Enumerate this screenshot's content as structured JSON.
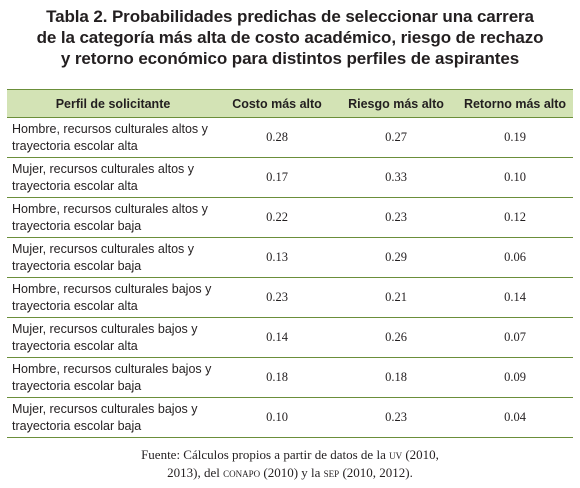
{
  "title": {
    "line1": "Tabla 2. Probabilidades predichas de seleccionar una carrera",
    "line2": "de la categoría más alta de costo académico, riesgo de rechazo",
    "line3": "y retorno económico para distintos perfiles de aspirantes"
  },
  "table": {
    "headers": [
      "Perfil de solicitante",
      "Costo más alto",
      "Riesgo más alto",
      "Retorno más alto"
    ],
    "rows": [
      {
        "profile": "Hombre, recursos culturales altos y\ntrayectoria escolar alta",
        "costo": "0.28",
        "riesgo": "0.27",
        "retorno": "0.19"
      },
      {
        "profile": "Mujer, recursos culturales altos y\ntrayectoria escolar alta",
        "costo": "0.17",
        "riesgo": "0.33",
        "retorno": "0.10"
      },
      {
        "profile": "Hombre, recursos culturales altos y\ntrayectoria escolar baja",
        "costo": "0.22",
        "riesgo": "0.23",
        "retorno": "0.12"
      },
      {
        "profile": "Mujer, recursos culturales altos y\ntrayectoria escolar baja",
        "costo": "0.13",
        "riesgo": "0.29",
        "retorno": "0.06"
      },
      {
        "profile": "Hombre, recursos culturales bajos y\ntrayectoria escolar alta",
        "costo": "0.23",
        "riesgo": "0.21",
        "retorno": "0.14"
      },
      {
        "profile": "Mujer, recursos culturales bajos y\ntrayectoria escolar alta",
        "costo": "0.14",
        "riesgo": "0.26",
        "retorno": "0.07"
      },
      {
        "profile": "Hombre, recursos culturales bajos y\ntrayectoria escolar baja",
        "costo": "0.18",
        "riesgo": "0.18",
        "retorno": "0.09"
      },
      {
        "profile": "Mujer, recursos culturales bajos y\ntrayectoria escolar baja",
        "costo": "0.10",
        "riesgo": "0.23",
        "retorno": "0.04"
      }
    ]
  },
  "source": {
    "p1": "Fuente: Cálculos propios a partir de datos de la ",
    "uv": "uv",
    "p2": " (2010,",
    "p3": "2013), del ",
    "conapo": "conapo",
    "p4": " (2010) y la ",
    "sep": "sep",
    "p5": " (2010, 2012)."
  }
}
